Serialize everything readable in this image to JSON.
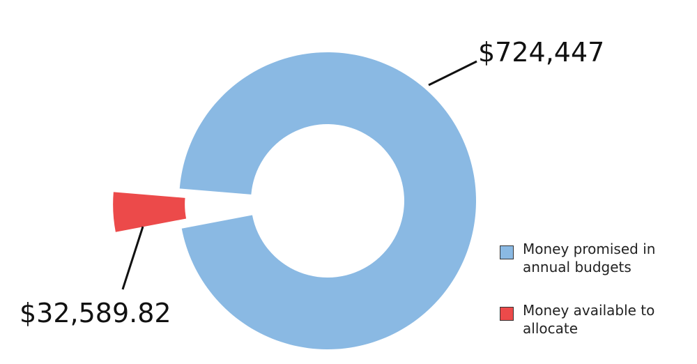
{
  "chart_data": {
    "type": "donut",
    "labels": [
      "Money promised in annual budgets",
      "Money available to allocate"
    ],
    "values": [
      724447,
      32589.82
    ],
    "value_labels": [
      "$724,447",
      "$32,589.82"
    ],
    "colors": [
      "#8ab9e3",
      "#ec4a4a"
    ]
  }
}
